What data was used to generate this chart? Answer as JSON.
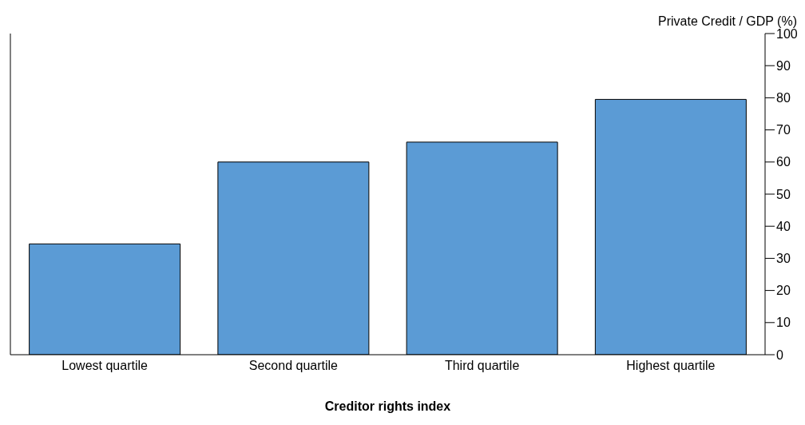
{
  "chart_data": {
    "type": "bar",
    "xlabel": "Creditor rights index",
    "ylabel": "Private Credit / GDP (%)",
    "categories": [
      "Lowest quartile",
      "Second quartile",
      "Third quartile",
      "Highest quartile"
    ],
    "values": [
      34.5,
      60,
      66.2,
      79.5
    ],
    "color": "#5b9bd5",
    "ylim": [
      0,
      100
    ],
    "yticks": [
      0,
      10,
      20,
      30,
      40,
      50,
      60,
      70,
      80,
      90,
      100
    ]
  }
}
